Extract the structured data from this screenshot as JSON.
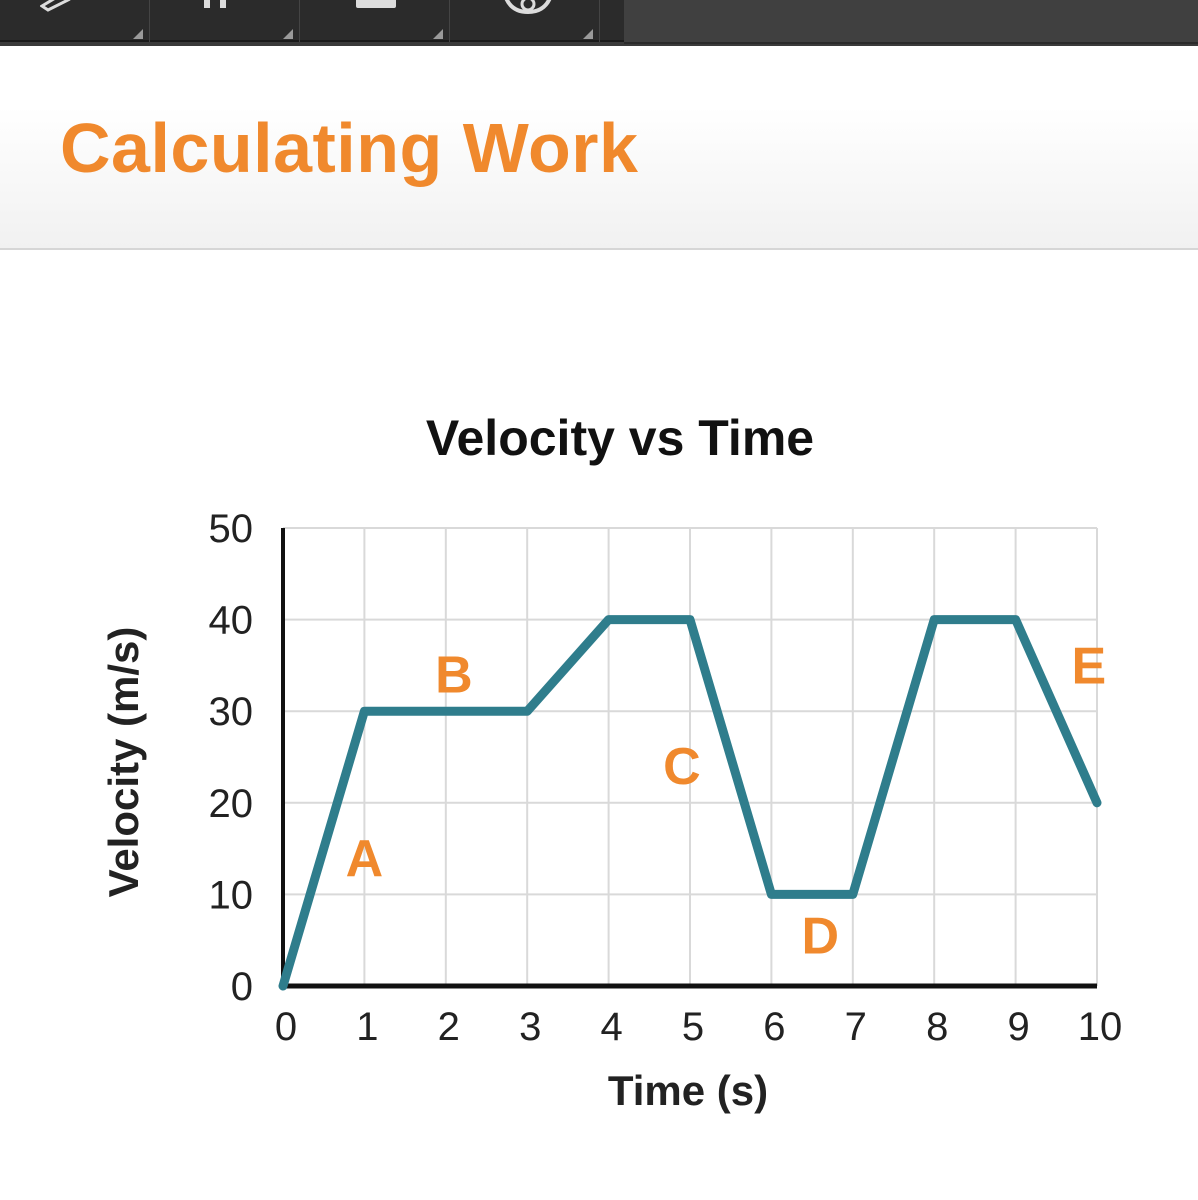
{
  "toolbar": {
    "buttons": [
      {
        "icon": "pencil-icon"
      },
      {
        "icon": "calculator-icon"
      },
      {
        "icon": "keyboard-icon"
      },
      {
        "icon": "settings-icon"
      }
    ]
  },
  "header": {
    "title": "Calculating Work"
  },
  "colors": {
    "title": "#f0892d",
    "line": "#2f7d8c",
    "segment_labels": "#f0892d",
    "grid": "#d9d9d9",
    "axis": "#111111"
  },
  "chart_data": {
    "type": "line",
    "title": "Velocity vs Time",
    "xlabel": "Time (s)",
    "ylabel": "Velocity (m/s)",
    "xlim": [
      0,
      10
    ],
    "ylim": [
      0,
      50
    ],
    "xticks": [
      0,
      1,
      2,
      3,
      4,
      5,
      6,
      7,
      8,
      9,
      10
    ],
    "yticks": [
      0,
      10,
      20,
      30,
      40,
      50
    ],
    "grid": true,
    "series": [
      {
        "x": [
          0,
          1,
          3,
          4,
          5,
          6,
          7,
          8,
          9,
          10
        ],
        "y": [
          0,
          30,
          30,
          40,
          40,
          10,
          10,
          40,
          40,
          20
        ]
      }
    ],
    "annotations": [
      {
        "text": "A",
        "x": 1,
        "y": 14
      },
      {
        "text": "B",
        "x": 2.1,
        "y": 34
      },
      {
        "text": "C",
        "x": 4.9,
        "y": 24
      },
      {
        "text": "D",
        "x": 6.6,
        "y": 5.5
      },
      {
        "text": "E",
        "x": 9.9,
        "y": 35
      }
    ]
  }
}
